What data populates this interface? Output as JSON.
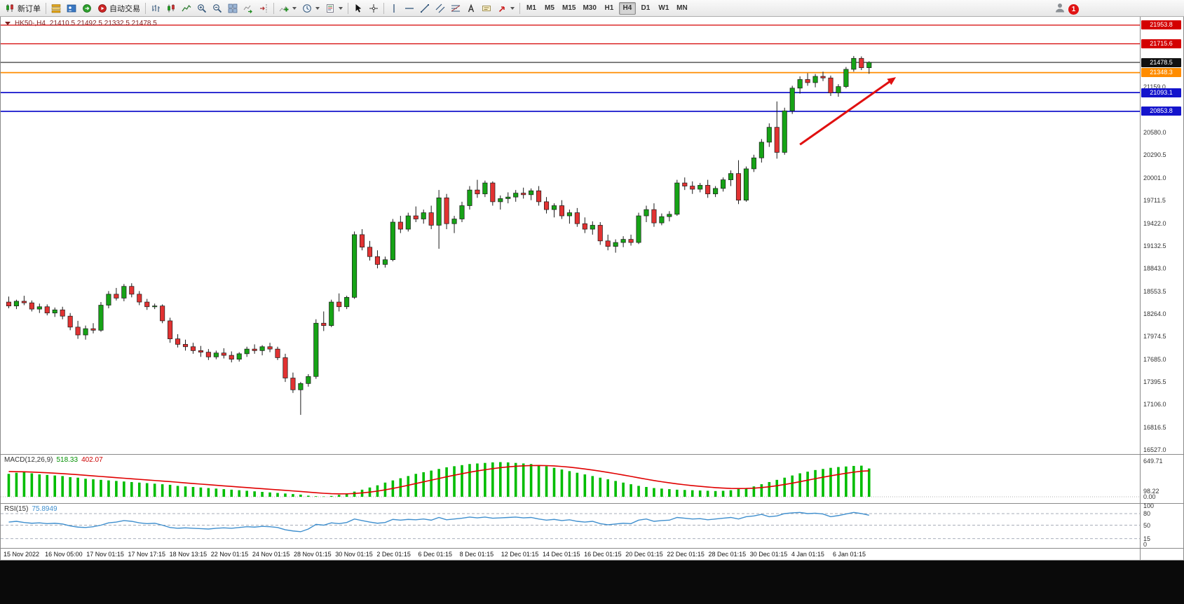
{
  "toolbar": {
    "new_order_label": "新订单",
    "autotrading_label": "自动交易",
    "timeframes": [
      "M1",
      "M5",
      "M15",
      "M30",
      "H1",
      "H4",
      "D1",
      "W1",
      "MN"
    ],
    "active_timeframe": "H4",
    "notification_count": "1"
  },
  "chart": {
    "symbol_title": "HK50-,H4",
    "ohlc_text": "21410.5 21492.5 21332.5 21478.5",
    "current_price": 21478.5,
    "current_price_label": "21478.5",
    "levels": [
      {
        "price": 21953.8,
        "label": "21953.8",
        "color": "#d40000",
        "width": 1.3
      },
      {
        "price": 21715.6,
        "label": "21715.6",
        "color": "#d40000",
        "width": 1.3
      },
      {
        "price": 21348.3,
        "label": "21348.3",
        "color": "#ff8c00",
        "width": 1.8
      },
      {
        "price": 21093.1,
        "label": "21093.1",
        "color": "#1414cc",
        "width": 1.8
      },
      {
        "price": 20853.8,
        "label": "20853.8",
        "color": "#1414cc",
        "width": 1.8
      }
    ],
    "price_ticks": [
      {
        "v": 21159.0,
        "label": "21159.0"
      },
      {
        "v": 20580.0,
        "label": "20580.0"
      },
      {
        "v": 20290.5,
        "label": "20290.5"
      },
      {
        "v": 20001.0,
        "label": "20001.0"
      },
      {
        "v": 19711.5,
        "label": "19711.5"
      },
      {
        "v": 19422.0,
        "label": "19422.0"
      },
      {
        "v": 19132.5,
        "label": "19132.5"
      },
      {
        "v": 18843.0,
        "label": "18843.0"
      },
      {
        "v": 18553.5,
        "label": "18553.5"
      },
      {
        "v": 18264.0,
        "label": "18264.0"
      },
      {
        "v": 17974.5,
        "label": "17974.5"
      },
      {
        "v": 17685.0,
        "label": "17685.0"
      },
      {
        "v": 17395.5,
        "label": "17395.5"
      },
      {
        "v": 17106.0,
        "label": "17106.0"
      },
      {
        "v": 16816.5,
        "label": "16816.5"
      },
      {
        "v": 16527.0,
        "label": "16527.0"
      }
    ]
  },
  "chart_data": {
    "type": "candlestick",
    "symbol": "HK50-",
    "timeframe": "H4",
    "y_range": [
      16480,
      22060
    ],
    "x_labels": [
      "15 Nov 2022",
      "16 Nov 05:00",
      "17 Nov 01:15",
      "17 Nov 17:15",
      "18 Nov 13:15",
      "22 Nov 01:15",
      "24 Nov 01:15",
      "28 Nov 01:15",
      "30 Nov 01:15",
      "2 Dec 01:15",
      "6 Dec 01:15",
      "8 Dec 01:15",
      "12 Dec 01:15",
      "14 Dec 01:15",
      "16 Dec 01:15",
      "20 Dec 01:15",
      "22 Dec 01:15",
      "28 Dec 01:15",
      "30 Dec 01:15",
      "4 Jan 01:15",
      "6 Jan 01:15"
    ],
    "candles": [
      [
        18420,
        18490,
        18340,
        18370
      ],
      [
        18370,
        18450,
        18330,
        18430
      ],
      [
        18430,
        18500,
        18380,
        18410
      ],
      [
        18410,
        18440,
        18300,
        18330
      ],
      [
        18330,
        18400,
        18280,
        18360
      ],
      [
        18360,
        18390,
        18250,
        18280
      ],
      [
        18280,
        18350,
        18230,
        18320
      ],
      [
        18320,
        18360,
        18200,
        18240
      ],
      [
        18240,
        18280,
        18060,
        18100
      ],
      [
        18100,
        18180,
        17950,
        18000
      ],
      [
        18000,
        18120,
        17940,
        18080
      ],
      [
        18080,
        18150,
        18020,
        18060
      ],
      [
        18060,
        18420,
        18040,
        18380
      ],
      [
        18380,
        18560,
        18340,
        18520
      ],
      [
        18520,
        18600,
        18440,
        18470
      ],
      [
        18470,
        18650,
        18430,
        18620
      ],
      [
        18620,
        18660,
        18480,
        18520
      ],
      [
        18520,
        18560,
        18380,
        18420
      ],
      [
        18420,
        18460,
        18320,
        18360
      ],
      [
        18360,
        18400,
        18330,
        18370
      ],
      [
        18370,
        18390,
        18150,
        18180
      ],
      [
        18180,
        18220,
        17900,
        17950
      ],
      [
        17950,
        18010,
        17840,
        17880
      ],
      [
        17880,
        17940,
        17800,
        17850
      ],
      [
        17850,
        17900,
        17760,
        17800
      ],
      [
        17800,
        17860,
        17720,
        17780
      ],
      [
        17780,
        17820,
        17680,
        17720
      ],
      [
        17720,
        17800,
        17690,
        17770
      ],
      [
        17770,
        17830,
        17700,
        17740
      ],
      [
        17740,
        17790,
        17650,
        17690
      ],
      [
        17690,
        17780,
        17660,
        17760
      ],
      [
        17760,
        17850,
        17720,
        17820
      ],
      [
        17820,
        17880,
        17760,
        17800
      ],
      [
        17800,
        17870,
        17740,
        17850
      ],
      [
        17850,
        17900,
        17780,
        17820
      ],
      [
        17820,
        17850,
        17680,
        17710
      ],
      [
        17710,
        17760,
        17400,
        17450
      ],
      [
        17450,
        17520,
        17260,
        17300
      ],
      [
        17300,
        17400,
        16980,
        17380
      ],
      [
        17380,
        17500,
        17340,
        17470
      ],
      [
        17470,
        18200,
        17440,
        18150
      ],
      [
        18150,
        18300,
        18050,
        18120
      ],
      [
        18120,
        18450,
        18100,
        18420
      ],
      [
        18420,
        18530,
        18300,
        18360
      ],
      [
        18360,
        18500,
        18330,
        18480
      ],
      [
        18480,
        19320,
        18460,
        19280
      ],
      [
        19280,
        19350,
        19080,
        19120
      ],
      [
        19120,
        19200,
        18950,
        19000
      ],
      [
        19000,
        19080,
        18850,
        18900
      ],
      [
        18900,
        19000,
        18860,
        18960
      ],
      [
        18960,
        19480,
        18940,
        19440
      ],
      [
        19440,
        19520,
        19300,
        19350
      ],
      [
        19350,
        19560,
        19320,
        19520
      ],
      [
        19520,
        19640,
        19440,
        19480
      ],
      [
        19480,
        19600,
        19420,
        19560
      ],
      [
        19560,
        19650,
        19350,
        19400
      ],
      [
        19400,
        19850,
        19100,
        19750
      ],
      [
        19750,
        19800,
        19350,
        19420
      ],
      [
        19420,
        19520,
        19300,
        19480
      ],
      [
        19480,
        19700,
        19440,
        19650
      ],
      [
        19650,
        19900,
        19600,
        19850
      ],
      [
        19850,
        19980,
        19750,
        19800
      ],
      [
        19800,
        19970,
        19760,
        19940
      ],
      [
        19940,
        19960,
        19650,
        19700
      ],
      [
        19700,
        19780,
        19600,
        19740
      ],
      [
        19740,
        19820,
        19680,
        19760
      ],
      [
        19760,
        19850,
        19700,
        19810
      ],
      [
        19810,
        19880,
        19740,
        19790
      ],
      [
        19790,
        19870,
        19720,
        19840
      ],
      [
        19840,
        19900,
        19650,
        19700
      ],
      [
        19700,
        19760,
        19550,
        19600
      ],
      [
        19600,
        19680,
        19500,
        19650
      ],
      [
        19650,
        19720,
        19480,
        19520
      ],
      [
        19520,
        19600,
        19420,
        19560
      ],
      [
        19560,
        19620,
        19380,
        19420
      ],
      [
        19420,
        19500,
        19300,
        19350
      ],
      [
        19350,
        19450,
        19280,
        19400
      ],
      [
        19400,
        19440,
        19150,
        19200
      ],
      [
        19200,
        19280,
        19080,
        19130
      ],
      [
        19130,
        19220,
        19050,
        19180
      ],
      [
        19180,
        19260,
        19120,
        19220
      ],
      [
        19220,
        19280,
        19140,
        19180
      ],
      [
        19180,
        19560,
        19160,
        19520
      ],
      [
        19520,
        19650,
        19440,
        19600
      ],
      [
        19600,
        19680,
        19380,
        19430
      ],
      [
        19430,
        19550,
        19400,
        19510
      ],
      [
        19510,
        19580,
        19450,
        19540
      ],
      [
        19540,
        19980,
        19520,
        19940
      ],
      [
        19940,
        20010,
        19850,
        19900
      ],
      [
        19900,
        19960,
        19800,
        19860
      ],
      [
        19860,
        19940,
        19820,
        19910
      ],
      [
        19910,
        19980,
        19750,
        19800
      ],
      [
        19800,
        19900,
        19760,
        19870
      ],
      [
        19870,
        20010,
        19830,
        19980
      ],
      [
        19980,
        20100,
        19900,
        20060
      ],
      [
        20060,
        20230,
        19670,
        19720
      ],
      [
        19720,
        20150,
        19700,
        20120
      ],
      [
        20120,
        20300,
        20080,
        20260
      ],
      [
        20260,
        20500,
        20200,
        20460
      ],
      [
        20460,
        20700,
        20400,
        20650
      ],
      [
        20650,
        20980,
        20250,
        20330
      ],
      [
        20330,
        20900,
        20300,
        20860
      ],
      [
        20860,
        21180,
        20820,
        21150
      ],
      [
        21150,
        21300,
        21080,
        21260
      ],
      [
        21260,
        21340,
        21180,
        21220
      ],
      [
        21220,
        21330,
        21160,
        21300
      ],
      [
        21300,
        21360,
        21240,
        21280
      ],
      [
        21280,
        21310,
        21050,
        21090
      ],
      [
        21090,
        21200,
        21040,
        21170
      ],
      [
        21170,
        21420,
        21150,
        21390
      ],
      [
        21390,
        21560,
        21360,
        21530
      ],
      [
        21530,
        21555,
        21380,
        21410
      ],
      [
        21410.5,
        21492.5,
        21332.5,
        21478.5
      ]
    ],
    "candle_colors": {
      "up": "#16a316",
      "down": "#e23232",
      "outline": "#1a1a1a"
    },
    "annotation_arrow": {
      "from_bar": 103,
      "from_price": 20430,
      "to_bar": 115.5,
      "to_price": 21290,
      "color": "#e01010"
    },
    "macd": {
      "label": "MACD(12,26,9)",
      "value_main": "518.33",
      "value_signal": "402.07",
      "max_scale": 680,
      "histogram_color": "#00bd00",
      "signal_color": "#e00000",
      "axis_labels": [
        {
          "v": 649.71,
          "label": "649.71"
        },
        {
          "v": 98.22,
          "label": "98.22"
        },
        {
          "v": 0,
          "label": "0.00"
        }
      ],
      "histogram": [
        420,
        440,
        450,
        430,
        410,
        400,
        390,
        380,
        360,
        350,
        330,
        320,
        310,
        300,
        290,
        280,
        270,
        260,
        250,
        240,
        230,
        220,
        200,
        190,
        180,
        170,
        160,
        150,
        140,
        130,
        120,
        110,
        100,
        90,
        80,
        70,
        60,
        50,
        40,
        20,
        10,
        5,
        15,
        35,
        60,
        95,
        130,
        170,
        210,
        260,
        300,
        340,
        380,
        420,
        450,
        480,
        510,
        540,
        560,
        580,
        600,
        610,
        620,
        630,
        635,
        630,
        620,
        610,
        600,
        580,
        560,
        530,
        500,
        470,
        440,
        410,
        380,
        350,
        320,
        290,
        260,
        230,
        200,
        180,
        160,
        150,
        140,
        130,
        125,
        120,
        115,
        110,
        105,
        110,
        120,
        140,
        160,
        190,
        230,
        270,
        310,
        350,
        390,
        430,
        460,
        490,
        510,
        530,
        545,
        555,
        565,
        570,
        518.33
      ]
    },
    "rsi": {
      "label": "RSI(15)",
      "value": "75.8949",
      "line_color": "#3f8fce",
      "levels": [
        80,
        50,
        15
      ],
      "axis_labels": [
        {
          "v": 100,
          "label": "100"
        },
        {
          "v": 80,
          "label": "80"
        },
        {
          "v": 50,
          "label": "50"
        },
        {
          "v": 15,
          "label": "15"
        },
        {
          "v": 0,
          "label": "0"
        }
      ],
      "values": [
        58,
        60,
        57,
        55,
        56,
        54,
        55,
        53,
        48,
        45,
        44,
        46,
        50,
        56,
        58,
        62,
        60,
        56,
        54,
        55,
        50,
        44,
        42,
        43,
        42,
        41,
        40,
        42,
        43,
        42,
        44,
        46,
        45,
        47,
        46,
        44,
        38,
        35,
        33,
        40,
        52,
        50,
        56,
        54,
        57,
        66,
        62,
        58,
        55,
        57,
        65,
        63,
        65,
        64,
        66,
        63,
        70,
        64,
        66,
        68,
        71,
        69,
        71,
        68,
        69,
        70,
        71,
        69,
        70,
        66,
        63,
        65,
        62,
        64,
        60,
        58,
        60,
        54,
        51,
        53,
        55,
        54,
        63,
        66,
        60,
        62,
        63,
        70,
        68,
        66,
        67,
        64,
        66,
        68,
        70,
        66,
        72,
        74,
        78,
        72,
        74,
        80,
        82,
        83,
        80,
        81,
        79,
        72,
        75,
        79,
        83,
        80,
        75.9
      ]
    }
  }
}
